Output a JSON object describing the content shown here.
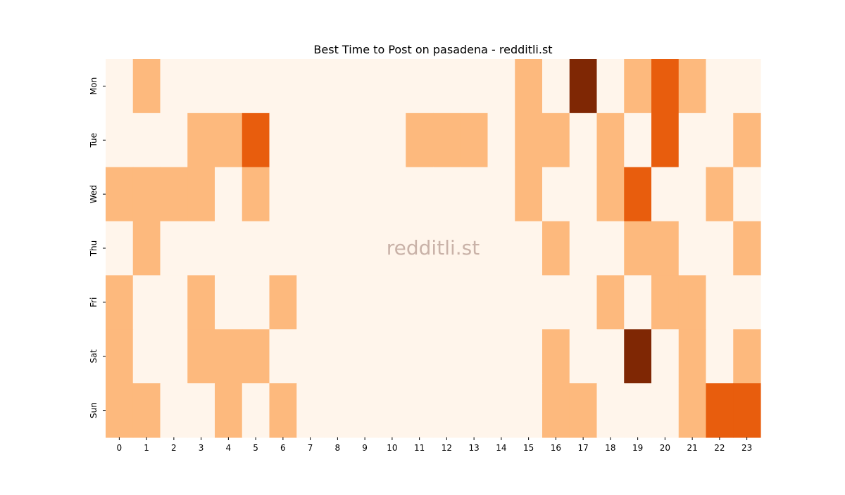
{
  "chart_data": {
    "type": "heatmap",
    "title": "Best Time to Post on pasadena - redditli.st",
    "watermark": "redditli.st",
    "x": [
      "0",
      "1",
      "2",
      "3",
      "4",
      "5",
      "6",
      "7",
      "8",
      "9",
      "10",
      "11",
      "12",
      "13",
      "14",
      "15",
      "16",
      "17",
      "18",
      "19",
      "20",
      "21",
      "22",
      "23"
    ],
    "y": [
      "Mon",
      "Tue",
      "Wed",
      "Thu",
      "Fri",
      "Sat",
      "Sun"
    ],
    "z": [
      [
        0,
        1,
        0,
        0,
        0,
        0,
        0,
        0,
        0,
        0,
        0,
        0,
        0,
        0,
        0,
        1,
        0,
        3,
        0,
        1,
        2,
        1,
        0,
        0
      ],
      [
        0,
        0,
        0,
        1,
        1,
        2,
        0,
        0,
        0,
        0,
        0,
        1,
        1,
        1,
        0,
        1,
        1,
        0,
        1,
        0,
        2,
        0,
        0,
        1
      ],
      [
        1,
        1,
        1,
        1,
        0,
        1,
        0,
        0,
        0,
        0,
        0,
        0,
        0,
        0,
        0,
        1,
        0,
        0,
        1,
        2,
        0,
        0,
        1,
        0
      ],
      [
        0,
        1,
        0,
        0,
        0,
        0,
        0,
        0,
        0,
        0,
        0,
        0,
        0,
        0,
        0,
        0,
        1,
        0,
        0,
        1,
        1,
        0,
        0,
        1
      ],
      [
        1,
        0,
        0,
        1,
        0,
        0,
        1,
        0,
        0,
        0,
        0,
        0,
        0,
        0,
        0,
        0,
        0,
        0,
        1,
        0,
        1,
        1,
        0,
        0
      ],
      [
        1,
        0,
        0,
        1,
        1,
        1,
        0,
        0,
        0,
        0,
        0,
        0,
        0,
        0,
        0,
        0,
        1,
        0,
        0,
        3,
        0,
        1,
        0,
        1
      ],
      [
        1,
        1,
        0,
        0,
        1,
        0,
        1,
        0,
        0,
        0,
        0,
        0,
        0,
        0,
        0,
        0,
        1,
        1,
        0,
        0,
        0,
        1,
        2,
        2
      ]
    ],
    "colors": [
      "#fff5eb",
      "#fdb97d",
      "#e85d0d",
      "#7f2704"
    ],
    "grid": false,
    "legend": "none"
  }
}
